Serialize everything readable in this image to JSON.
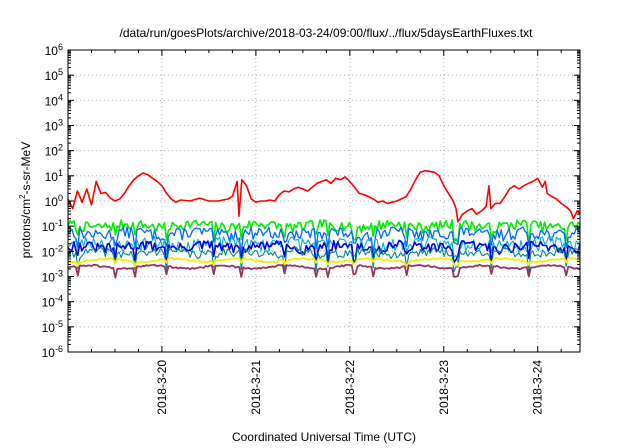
{
  "chart_data": {
    "type": "line",
    "title": "/data/run/goesPlots/archive/2018-03-24/09:00/flux/../flux/5daysEarthFluxes.txt",
    "xlabel": "Coordinated Universal Time (UTC)",
    "ylabel_base": "protons/cm",
    "ylabel_sup": "2",
    "ylabel_rest": "-s-sr-MeV",
    "y_scale": "log",
    "ylim_exp": [
      -6,
      6
    ],
    "y_ticks": [
      {
        "exp": 6,
        "base": "10",
        "sup": "6"
      },
      {
        "exp": 5,
        "base": "10",
        "sup": "5"
      },
      {
        "exp": 4,
        "base": "10",
        "sup": "4"
      },
      {
        "exp": 3,
        "base": "10",
        "sup": "3"
      },
      {
        "exp": 2,
        "base": "10",
        "sup": "2"
      },
      {
        "exp": 1,
        "base": "10",
        "sup": "1"
      },
      {
        "exp": 0,
        "base": "10",
        "sup": "0"
      },
      {
        "exp": -1,
        "base": "10",
        "sup": "-1"
      },
      {
        "exp": -2,
        "base": "10",
        "sup": "-2"
      },
      {
        "exp": -3,
        "base": "10",
        "sup": "-3"
      },
      {
        "exp": -4,
        "base": "10",
        "sup": "-4"
      },
      {
        "exp": -5,
        "base": "10",
        "sup": "-5"
      },
      {
        "exp": -6,
        "base": "10",
        "sup": "-6"
      }
    ],
    "xlim_days": [
      19.0,
      24.45
    ],
    "x_ticks": [
      {
        "day": 20,
        "label": "2018-3-20"
      },
      {
        "day": 21,
        "label": "2018-3-21"
      },
      {
        "day": 22,
        "label": "2018-3-22"
      },
      {
        "day": 23,
        "label": "2018-3-23"
      },
      {
        "day": 24,
        "label": "2018-3-24"
      }
    ],
    "grid": true,
    "legend": "none",
    "series": [
      {
        "color": "#ff0000",
        "width": 1.6,
        "points": [
          [
            19.0,
            1.2
          ],
          [
            19.05,
            0.5
          ],
          [
            19.1,
            2.5
          ],
          [
            19.15,
            0.9
          ],
          [
            19.2,
            3.0
          ],
          [
            19.25,
            0.7
          ],
          [
            19.3,
            6
          ],
          [
            19.35,
            2
          ],
          [
            19.4,
            2.2
          ],
          [
            19.45,
            1.3
          ],
          [
            19.5,
            1.0
          ],
          [
            19.55,
            1.2
          ],
          [
            19.6,
            2
          ],
          [
            19.65,
            4
          ],
          [
            19.7,
            7
          ],
          [
            19.75,
            10
          ],
          [
            19.8,
            13
          ],
          [
            19.85,
            11
          ],
          [
            19.9,
            8
          ],
          [
            19.95,
            6
          ],
          [
            20.0,
            4
          ],
          [
            20.05,
            2
          ],
          [
            20.1,
            1.2
          ],
          [
            20.15,
            0.9
          ],
          [
            20.2,
            1.1
          ],
          [
            20.3,
            1.0
          ],
          [
            20.4,
            1.3
          ],
          [
            20.5,
            1.0
          ],
          [
            20.6,
            1.0
          ],
          [
            20.7,
            1.2
          ],
          [
            20.75,
            1.5
          ],
          [
            20.8,
            6
          ],
          [
            20.82,
            0.25
          ],
          [
            20.85,
            7
          ],
          [
            20.9,
            4
          ],
          [
            20.95,
            1.2
          ],
          [
            21.0,
            0.9
          ],
          [
            21.05,
            1.0
          ],
          [
            21.1,
            1.0
          ],
          [
            21.15,
            1.1
          ],
          [
            21.2,
            1.0
          ],
          [
            21.25,
            1.8
          ],
          [
            21.3,
            2.5
          ],
          [
            21.35,
            2.3
          ],
          [
            21.4,
            3.0
          ],
          [
            21.45,
            3.5
          ],
          [
            21.5,
            3.0
          ],
          [
            21.55,
            2.5
          ],
          [
            21.6,
            3.5
          ],
          [
            21.65,
            5
          ],
          [
            21.7,
            6
          ],
          [
            21.75,
            7
          ],
          [
            21.8,
            5
          ],
          [
            21.85,
            8
          ],
          [
            21.9,
            7
          ],
          [
            21.95,
            9
          ],
          [
            22.0,
            6
          ],
          [
            22.05,
            3.5
          ],
          [
            22.1,
            2
          ],
          [
            22.15,
            1.8
          ],
          [
            22.2,
            1.5
          ],
          [
            22.25,
            1.2
          ],
          [
            22.3,
            0.9
          ],
          [
            22.35,
            1.0
          ],
          [
            22.4,
            0.8
          ],
          [
            22.5,
            1.0
          ],
          [
            22.6,
            1.5
          ],
          [
            22.65,
            3
          ],
          [
            22.7,
            7
          ],
          [
            22.75,
            14
          ],
          [
            22.8,
            16
          ],
          [
            22.85,
            15
          ],
          [
            22.9,
            14
          ],
          [
            22.95,
            10
          ],
          [
            23.0,
            4
          ],
          [
            23.05,
            2
          ],
          [
            23.1,
            1.0
          ],
          [
            23.13,
            0.5
          ],
          [
            23.15,
            0.15
          ],
          [
            23.2,
            0.3
          ],
          [
            23.25,
            0.4
          ],
          [
            23.3,
            0.5
          ],
          [
            23.35,
            0.3
          ],
          [
            23.4,
            0.4
          ],
          [
            23.45,
            0.6
          ],
          [
            23.48,
            4
          ],
          [
            23.5,
            0.5
          ],
          [
            23.55,
            0.8
          ],
          [
            23.6,
            0.8
          ],
          [
            23.65,
            1.5
          ],
          [
            23.7,
            3
          ],
          [
            23.75,
            4
          ],
          [
            23.8,
            3
          ],
          [
            23.85,
            4
          ],
          [
            23.9,
            5
          ],
          [
            23.95,
            6
          ],
          [
            24.0,
            8
          ],
          [
            24.05,
            3.5
          ],
          [
            24.08,
            6
          ],
          [
            24.1,
            2
          ],
          [
            24.15,
            1.5
          ],
          [
            24.2,
            1.2
          ],
          [
            24.25,
            0.8
          ],
          [
            24.3,
            0.6
          ],
          [
            24.35,
            0.4
          ],
          [
            24.38,
            0.2
          ],
          [
            24.42,
            0.4
          ],
          [
            24.45,
            0.3
          ]
        ]
      },
      {
        "color": "#00ee00",
        "width": 1.6,
        "base": 0.11,
        "noise": 0.45,
        "seed": 7
      },
      {
        "color": "#0066ff",
        "width": 1.3,
        "base": 0.055,
        "noise": 0.5,
        "seed": 13
      },
      {
        "color": "#00b0d0",
        "width": 1.1,
        "base": 0.022,
        "noise": 0.55,
        "seed": 23
      },
      {
        "color": "#0000dd",
        "width": 1.6,
        "base": 0.016,
        "noise": 0.45,
        "seed": 31
      },
      {
        "color": "#008888",
        "width": 1.1,
        "base": 0.009,
        "noise": 0.4,
        "seed": 41
      },
      {
        "color": "#f0f000",
        "width": 1.8,
        "base": 0.0045,
        "noise": 0.08,
        "seed": 53
      },
      {
        "color": "#993366",
        "width": 1.8,
        "base": 0.0024,
        "noise": 0.08,
        "seed": 61
      }
    ]
  }
}
